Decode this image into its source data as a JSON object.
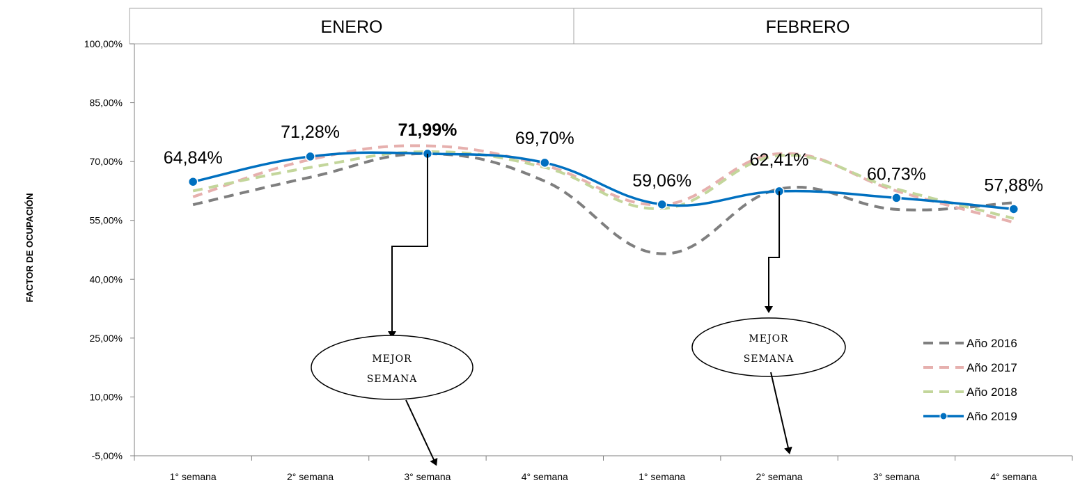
{
  "chart_data": {
    "type": "line",
    "ylabel": "FACTOR DE OCUPACIÓN",
    "ylim": [
      -5,
      100
    ],
    "yticks": [
      "-5,00%",
      "10,00%",
      "25,00%",
      "40,00%",
      "55,00%",
      "70,00%",
      "85,00%",
      "100,00%"
    ],
    "ytick_values": [
      -5,
      10,
      25,
      40,
      55,
      70,
      85,
      100
    ],
    "groups": [
      {
        "label": "ENERO",
        "span": 4
      },
      {
        "label": "FEBRERO",
        "span": 4
      }
    ],
    "categories": [
      "1° semana",
      "2° semana",
      "3° semana",
      "4° semana",
      "1° semana",
      "2° semana",
      "3° semana",
      "4° semana"
    ],
    "series": [
      {
        "name": "Año 2016",
        "color": "#7f7f7f",
        "dash": true,
        "values": [
          59.0,
          66.0,
          72.0,
          65.0,
          46.5,
          63.0,
          57.8,
          59.5
        ]
      },
      {
        "name": "Año 2017",
        "color": "#e6b0ae",
        "dash": true,
        "values": [
          61.0,
          70.5,
          74.0,
          69.0,
          59.0,
          72.0,
          62.5,
          54.5
        ]
      },
      {
        "name": "Año 2018",
        "color": "#c3d69b",
        "dash": true,
        "values": [
          62.5,
          68.5,
          72.5,
          68.5,
          58.0,
          71.5,
          63.0,
          55.5
        ]
      },
      {
        "name": "Año 2019",
        "color": "#0070c0",
        "dash": false,
        "marker": true,
        "values": [
          64.84,
          71.28,
          71.99,
          69.7,
          59.06,
          62.41,
          60.73,
          57.88
        ]
      }
    ],
    "data_labels": [
      "64,84%",
      "71,28%",
      "71,99%",
      "69,70%",
      "59,06%",
      "62,41%",
      "60,73%",
      "57,88%"
    ],
    "bold_label_index": 2,
    "legend_position": "bottom-right",
    "grid": false,
    "annotations": [
      {
        "text_lines": [
          "MEJOR",
          "SEMANA"
        ],
        "point_index": 2
      },
      {
        "text_lines": [
          "MEJOR",
          "SEMANA"
        ],
        "point_index": 5
      }
    ]
  }
}
